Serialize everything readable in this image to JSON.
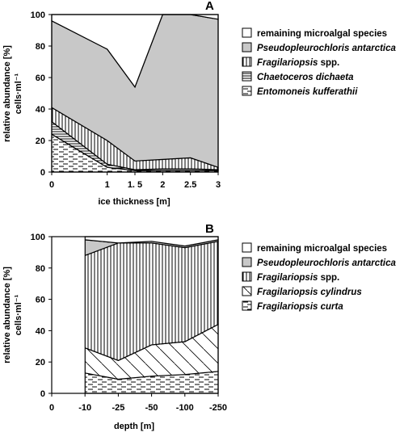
{
  "panels": [
    {
      "panel_label": "A",
      "legend_items": [
        {
          "label": "remaining microalgal species",
          "italic": false,
          "pattern": "white"
        },
        {
          "label": "Pseudopleurochloris antarctica",
          "italic": true,
          "pattern": "gray"
        },
        {
          "label": "Fragilariopsis",
          "label_suffix": " spp.",
          "italic": true,
          "pattern": "vlines"
        },
        {
          "label": "Chaetoceros dichaeta",
          "italic": true,
          "pattern": "hlines-dense"
        },
        {
          "label": "Entomoneis  kufferathii",
          "italic": true,
          "pattern": "hdash"
        }
      ]
    },
    {
      "panel_label": "B",
      "legend_items": [
        {
          "label": "remaining microalgal species",
          "italic": false,
          "pattern": "white"
        },
        {
          "label": "Pseudopleurochloris antarctica",
          "italic": true,
          "pattern": "gray"
        },
        {
          "label": "Fragilariopsis",
          "label_suffix": " spp.",
          "italic": true,
          "pattern": "vlines"
        },
        {
          "label": "Fragilariopsis cylindrus",
          "italic": true,
          "pattern": "diag"
        },
        {
          "label": "Fragilariopsis curta",
          "italic": true,
          "pattern": "hdash"
        }
      ]
    }
  ],
  "chart_data": [
    {
      "type": "area",
      "panel": "A",
      "xlabel": "ice thickness [m]",
      "ylabel": "relative abundance [%]",
      "ylabel2": "cells·ml⁻¹",
      "x_tick_labels": [
        "0",
        "1",
        "1. 5",
        "2",
        "2.5",
        "3"
      ],
      "y_tick_labels": [
        "0",
        "20",
        "40",
        "60",
        "80",
        "100"
      ],
      "ylim": [
        0,
        100
      ],
      "x": [
        0,
        1,
        1.5,
        2,
        2.5,
        3
      ],
      "stacked": true,
      "series": [
        {
          "name": "Entomoneis  kufferathii",
          "pattern": "hdash",
          "values": [
            24,
            3,
            1,
            1,
            1,
            1
          ]
        },
        {
          "name": "Chaetoceros dichaeta",
          "pattern": "hlines-dense",
          "values": [
            8,
            2,
            0.5,
            1,
            1,
            0.5
          ]
        },
        {
          "name": "Fragilariopsis spp.",
          "pattern": "vlines",
          "values": [
            9,
            15,
            5.5,
            6,
            7,
            1.5
          ]
        },
        {
          "name": "Pseudopleurochloris antarctica",
          "pattern": "gray",
          "values": [
            55,
            58,
            47,
            92,
            91,
            94
          ]
        },
        {
          "name": "remaining microalgal species",
          "pattern": "white",
          "values": [
            4,
            22,
            46,
            0,
            0,
            3
          ]
        }
      ]
    },
    {
      "type": "area",
      "panel": "B",
      "xlabel": "depth [m]",
      "ylabel": "relative abundance [%]",
      "ylabel2": "cells·ml⁻¹",
      "x_tick_labels": [
        "0",
        "-10",
        "-25",
        "-50",
        "-100",
        "-250"
      ],
      "y_tick_labels": [
        "0",
        "20",
        "40",
        "60",
        "80",
        "100"
      ],
      "ylim": [
        0,
        100
      ],
      "x": [
        "-10",
        "-25",
        "-50",
        "-100",
        "-250"
      ],
      "x_positions": [
        1,
        2,
        3,
        4,
        5
      ],
      "stacked": true,
      "empty_category": "0",
      "series": [
        {
          "name": "Fragilariopsis curta",
          "pattern": "hdash",
          "values": [
            13,
            9,
            11,
            12,
            14
          ]
        },
        {
          "name": "Fragilariopsis cylindrus",
          "pattern": "diag",
          "values": [
            16,
            12,
            20,
            21,
            30
          ]
        },
        {
          "name": "Fragilariopsis spp.",
          "pattern": "vlines",
          "values": [
            59,
            75,
            65,
            60,
            53
          ]
        },
        {
          "name": "Pseudopleurochloris antarctica",
          "pattern": "gray",
          "values": [
            10,
            0,
            1,
            1,
            1
          ]
        },
        {
          "name": "remaining microalgal species",
          "pattern": "white",
          "values": [
            2,
            4,
            3,
            6,
            2
          ]
        }
      ]
    }
  ]
}
